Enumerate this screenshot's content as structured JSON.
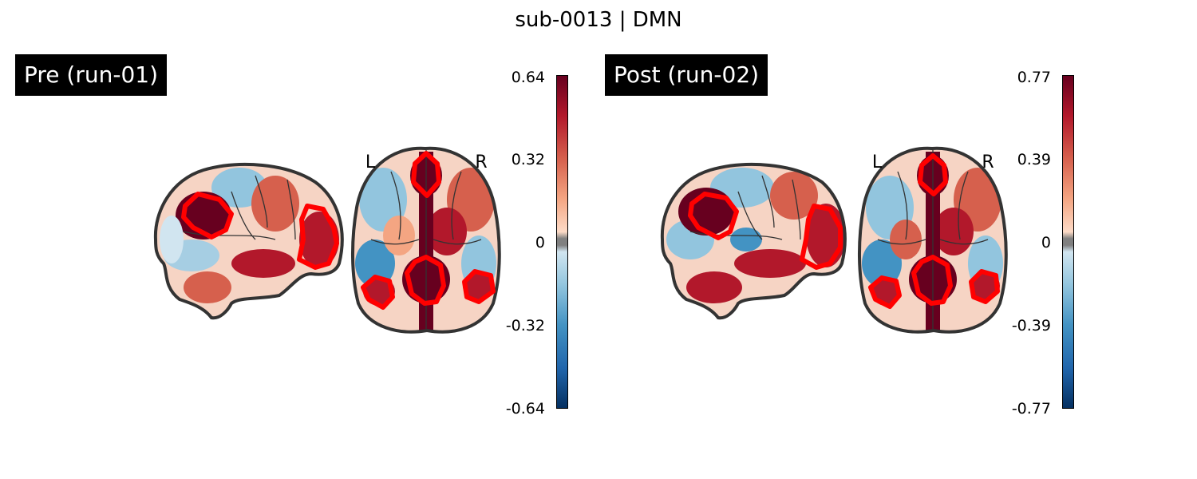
{
  "figure": {
    "title": "sub-0013 | DMN"
  },
  "panels": [
    {
      "label": "Pre (run-01)",
      "orientation_left": "L",
      "orientation_right": "R",
      "colorbar": {
        "max_label": "0.64",
        "mid_pos_label": "0.32",
        "zero_label": "0",
        "mid_neg_label": "-0.32",
        "min_label": "-0.64",
        "vmin": -0.64,
        "vmax": 0.64
      }
    },
    {
      "label": "Post (run-02)",
      "orientation_left": "L",
      "orientation_right": "R",
      "colorbar": {
        "max_label": "0.77",
        "mid_pos_label": "0.39",
        "zero_label": "0",
        "mid_neg_label": "-0.39",
        "min_label": "-0.77",
        "vmin": -0.77,
        "vmax": 0.77
      }
    }
  ],
  "colors": {
    "outline": "#333333",
    "roi": "#ff0000",
    "label_bg": "#000000",
    "label_fg": "#ffffff"
  }
}
